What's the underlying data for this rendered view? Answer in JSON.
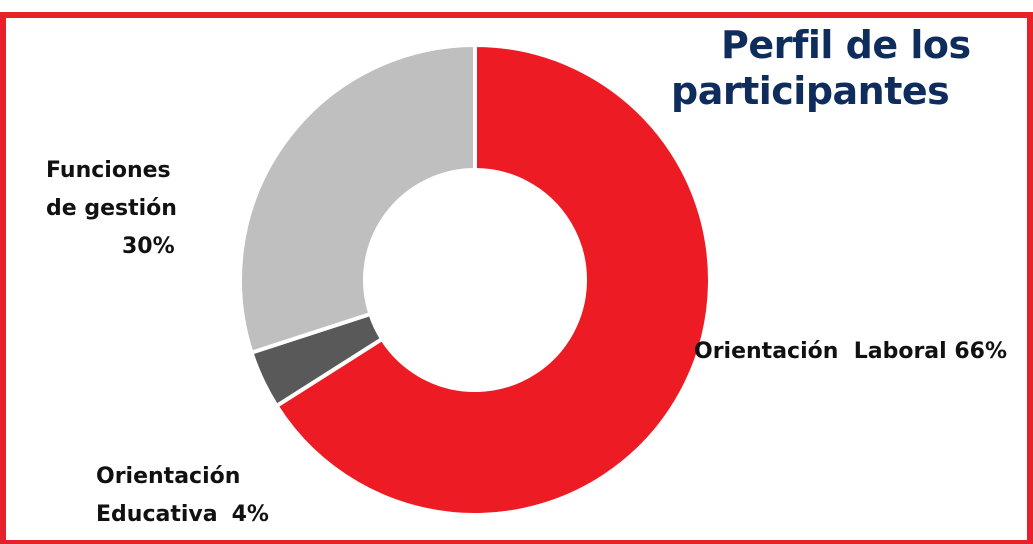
{
  "chart_data": {
    "type": "pie",
    "title_line1": "Perfil de los",
    "title_line2": "participantes",
    "slices": [
      {
        "label": "Orientación Laboral",
        "value": 66,
        "pct_text": "66%",
        "color": "#ed1c24"
      },
      {
        "label": "Orientación Educativa",
        "value": 4,
        "pct_text": "4%",
        "color": "#595959"
      },
      {
        "label": "Funciones de gestión",
        "value": 30,
        "pct_text": "30%",
        "color": "#bfbfbf"
      }
    ],
    "labels": {
      "gestion_line1": "Funciones",
      "gestion_line2": "de gestión",
      "gestion_pct": "30%",
      "laboral": "Orientación  Laboral 66%",
      "educ_line1": "Orientación",
      "educ_line2": "Educativa",
      "educ_pct": "4%"
    }
  },
  "colors": {
    "frame": "#e8202a",
    "title": "#0f2d5c"
  }
}
